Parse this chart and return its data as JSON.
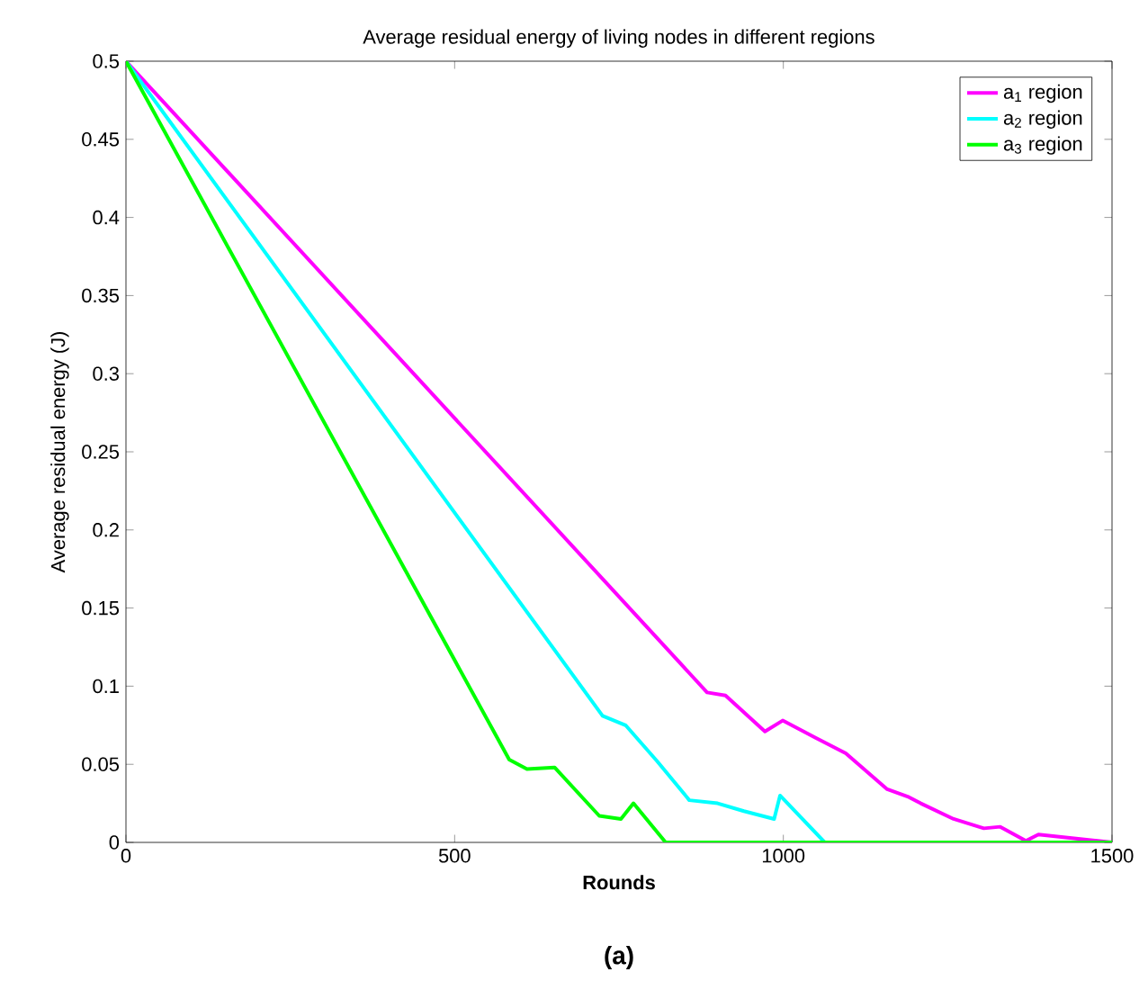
{
  "chart_data": {
    "type": "line",
    "title": "Average residual energy of living nodes in different regions",
    "xlabel": "Rounds",
    "ylabel": "Average residual energy (J)",
    "xlim": [
      0,
      1500
    ],
    "xticks": [
      0,
      500,
      1000,
      1500
    ],
    "ylim": [
      0,
      0.5
    ],
    "yticks": [
      0,
      0.05,
      0.1,
      0.15,
      0.2,
      0.25,
      0.3,
      0.35,
      0.4,
      0.45,
      0.5
    ],
    "grid": false,
    "legend": "top right",
    "line_style": "solid",
    "marker": "none",
    "annotations": [
      "(a)"
    ],
    "series": [
      {
        "name": "a$_{1}$ region",
        "color": "#ff00ff",
        "x": [
          0,
          884,
          912,
          972,
          999,
          1049,
          1095,
          1158,
          1191,
          1209,
          1259,
          1305,
          1330,
          1369,
          1388,
          1500
        ],
        "values": [
          0.5,
          0.096,
          0.094,
          0.071,
          0.078,
          0.067,
          0.057,
          0.034,
          0.029,
          0.025,
          0.015,
          0.009,
          0.01,
          0.001,
          0.005,
          0
        ]
      },
      {
        "name": "a$_{2}$ region",
        "color": "#00ffff",
        "x": [
          0,
          725,
          760,
          808,
          857,
          900,
          940,
          986,
          995,
          1063,
          1500
        ],
        "values": [
          0.5,
          0.081,
          0.075,
          0.052,
          0.027,
          0.025,
          0.02,
          0.015,
          0.03,
          0,
          0
        ]
      },
      {
        "name": "a$_{3}$ region",
        "color": "#00ff00",
        "x": [
          0,
          583,
          610,
          652,
          720,
          753,
          772,
          821,
          1500
        ],
        "values": [
          0.5,
          0.053,
          0.047,
          0.048,
          0.017,
          0.015,
          0.025,
          0,
          0
        ]
      }
    ]
  }
}
